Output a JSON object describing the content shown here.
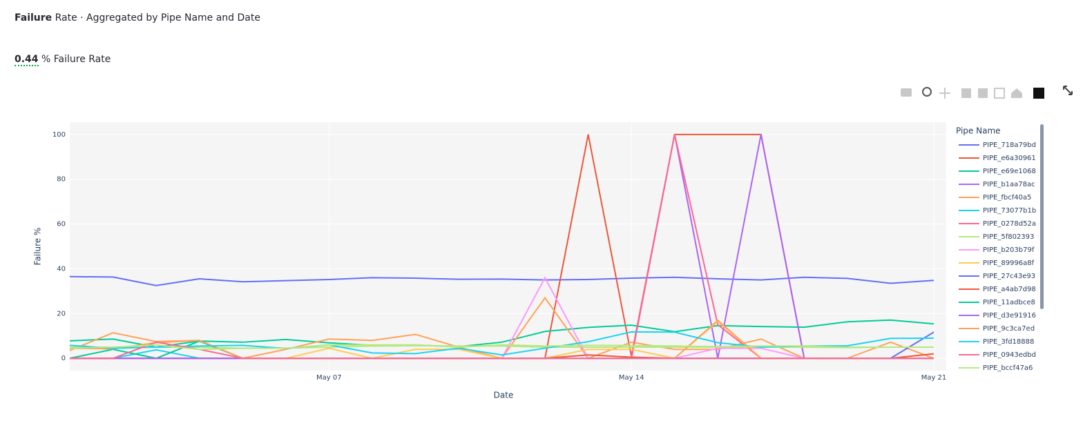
{
  "header": {
    "title_bold": "Failure",
    "title_rest": "Rate · Aggregated by Pipe Name and Date",
    "kpi_value": "0.44",
    "kpi_label": "% Failure Rate"
  },
  "chart_data": {
    "type": "line",
    "x_title": "Date",
    "y_title": "Failure %",
    "legend_title": "Pipe Name",
    "grid": true,
    "x": [
      1,
      2,
      3,
      4,
      5,
      6,
      7,
      8,
      9,
      10,
      11,
      12,
      13,
      14,
      15,
      16,
      17,
      18,
      19,
      20,
      21
    ],
    "xlim": [
      1,
      21
    ],
    "xticks": [
      {
        "value": 7,
        "label": "May 07"
      },
      {
        "value": 14,
        "label": "May 14"
      },
      {
        "value": 21,
        "label": "May 21"
      }
    ],
    "ylim": [
      -5.5,
      105.5
    ],
    "yticks": [
      0,
      20,
      40,
      60,
      80,
      100
    ],
    "series": [
      {
        "name": "PIPE_718a79bd",
        "color": "#636efa",
        "values": [
          36.5,
          36.3,
          32.5,
          35.5,
          34.2,
          34.7,
          35.2,
          36,
          35.8,
          35.3,
          35.4,
          35,
          35.2,
          35.8,
          36.2,
          35.5,
          35,
          36.2,
          35.7,
          33.5,
          34.8
        ]
      },
      {
        "name": "PIPE_e6a30961",
        "color": "#EF553B",
        "values": [
          0,
          0,
          0,
          0,
          0,
          0,
          0,
          0,
          0,
          0,
          0,
          0,
          100,
          1,
          100,
          100,
          100,
          0,
          0,
          0,
          0
        ]
      },
      {
        "name": "PIPE_e69e1068",
        "color": "#00cc96",
        "values": [
          7.8,
          8.6,
          5,
          7.7,
          7.2,
          8.4,
          6.9,
          5.8,
          5.9,
          5.2,
          7.2,
          12,
          13.8,
          14.8,
          11.9,
          14.6,
          14.2,
          13.9,
          16.3,
          17.1,
          15.4
        ]
      },
      {
        "name": "PIPE_b1aa78ac",
        "color": "#ab63fa",
        "values": [
          0,
          0,
          0,
          0,
          0,
          0,
          0,
          0,
          0,
          0,
          0,
          0,
          0,
          0,
          100,
          0,
          100,
          0,
          0,
          0,
          0
        ]
      },
      {
        "name": "PIPE_fbcf40a5",
        "color": "#FFA15A",
        "values": [
          3.5,
          11.4,
          7.5,
          8,
          0,
          4,
          8.6,
          8,
          10.7,
          5,
          0,
          27,
          0,
          7.2,
          4,
          4,
          8.6,
          0,
          0,
          7.2,
          0
        ]
      },
      {
        "name": "PIPE_73077b1b",
        "color": "#19d3f3",
        "values": [
          0,
          0,
          3.8,
          0,
          0,
          0,
          0,
          0,
          0,
          0,
          0,
          0,
          0,
          0,
          0,
          0,
          0,
          0,
          0,
          0,
          0
        ]
      },
      {
        "name": "PIPE_0278d52a",
        "color": "#FF6692",
        "values": [
          0,
          0,
          0,
          0,
          0,
          0,
          0,
          0,
          0,
          0,
          0,
          0,
          0,
          0,
          100,
          15,
          0,
          0,
          0,
          0,
          0
        ]
      },
      {
        "name": "PIPE_5f802393",
        "color": "#B6E880",
        "values": [
          5,
          5,
          5,
          5,
          4.5,
          4.6,
          5,
          5.5,
          5.6,
          5.5,
          5.5,
          5,
          5,
          5,
          5,
          5,
          5,
          5,
          4.8,
          5,
          5
        ]
      },
      {
        "name": "PIPE_b203b79f",
        "color": "#FF97FF",
        "values": [
          0,
          0,
          0,
          0,
          0,
          0,
          0,
          0,
          0,
          0,
          0,
          36,
          0,
          0,
          0,
          4.5,
          4.5,
          0,
          0,
          0,
          0
        ]
      },
      {
        "name": "PIPE_89996a8f",
        "color": "#FECB52",
        "values": [
          0,
          0,
          0,
          0,
          0,
          0,
          4.5,
          0,
          4,
          4,
          0,
          0,
          4,
          4,
          0,
          16.5,
          0,
          0,
          0,
          0,
          0
        ]
      },
      {
        "name": "PIPE_27c43e93",
        "color": "#636efa",
        "values": [
          0,
          0,
          0,
          0,
          0,
          0,
          0,
          0,
          0,
          0,
          0,
          0,
          0,
          0,
          0,
          0,
          0,
          0,
          0,
          0,
          11.7
        ]
      },
      {
        "name": "PIPE_a4ab7d98",
        "color": "#EF553B",
        "values": [
          0,
          0,
          0,
          0,
          0,
          0,
          0,
          0,
          0,
          0,
          0,
          0,
          1.5,
          0.5,
          0,
          0,
          0,
          0,
          0,
          0,
          2
        ]
      },
      {
        "name": "PIPE_11adbce8",
        "color": "#00cc96",
        "values": [
          0,
          4,
          0,
          7.7,
          0,
          0,
          0,
          0,
          0,
          0,
          0,
          0,
          0,
          0,
          0,
          0,
          0,
          0,
          0,
          0,
          0
        ]
      },
      {
        "name": "PIPE_d3e91916",
        "color": "#ab63fa",
        "values": [
          0,
          0,
          0,
          0,
          0,
          0,
          0,
          0,
          0,
          0,
          0,
          0,
          0,
          0,
          0,
          0,
          0,
          0,
          0,
          0,
          0
        ]
      },
      {
        "name": "PIPE_9c3ca7ed",
        "color": "#FFA15A",
        "values": [
          4.5,
          4.2,
          7,
          8,
          0,
          0,
          0,
          0,
          0,
          0,
          0,
          0,
          0,
          0,
          0,
          17,
          0,
          0,
          0,
          0,
          0
        ]
      },
      {
        "name": "PIPE_3fd18888",
        "color": "#19d3f3",
        "values": [
          5.8,
          4.5,
          5,
          5.5,
          5.8,
          4.4,
          6,
          2.4,
          2.1,
          4.5,
          1.5,
          4.5,
          7.4,
          11.8,
          11.7,
          7,
          5,
          5.5,
          5.6,
          8.9,
          9
        ]
      },
      {
        "name": "PIPE_0943edbd",
        "color": "#FF6692",
        "values": [
          0,
          0,
          7.2,
          4,
          0,
          0,
          0,
          0,
          0,
          0,
          0,
          0,
          0,
          0,
          0,
          0,
          0,
          0,
          0,
          0,
          0
        ]
      },
      {
        "name": "PIPE_bccf47a6",
        "color": "#B6E880",
        "values": [
          4.5,
          5,
          6,
          4,
          4.5,
          4.5,
          6,
          6,
          6,
          5,
          6,
          5.5,
          5.8,
          5.7,
          5.5,
          5.2,
          5.5,
          5.5,
          5,
          5,
          5
        ]
      }
    ]
  }
}
